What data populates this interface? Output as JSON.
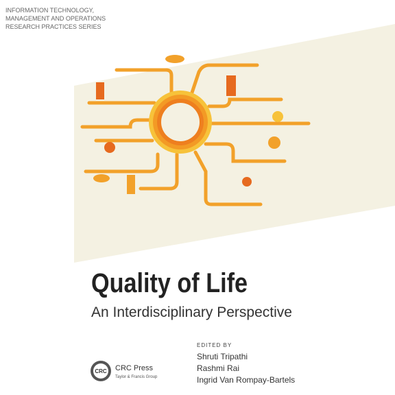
{
  "series": {
    "lines": [
      "INFORMATION TECHNOLOGY,",
      "MANAGEMENT AND OPERATIONS",
      "RESEARCH PRACTICES SERIES"
    ]
  },
  "title": "Quality of Life",
  "subtitle": "An Interdisciplinary Perspective",
  "editors": {
    "label": "EDITED BY",
    "names": [
      "Shruti Tripathi",
      "Rashmi Rai",
      "Ingrid Van Rompay-Bartels"
    ]
  },
  "publisher": {
    "logo": "CRC",
    "name": "CRC Press",
    "group": "Taylor & Francis Group"
  }
}
